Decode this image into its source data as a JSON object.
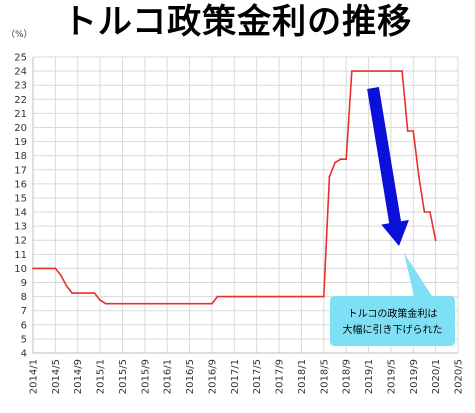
{
  "chart_data": {
    "type": "line",
    "title": "トルコ政策金利の推移",
    "ylabel": "（%）",
    "xlabel": "",
    "ylim": [
      4,
      25
    ],
    "yticks": [
      4,
      5,
      6,
      7,
      8,
      9,
      10,
      11,
      12,
      13,
      14,
      15,
      16,
      17,
      18,
      19,
      20,
      21,
      22,
      23,
      24,
      25
    ],
    "xticks": [
      "2014/1",
      "2014/5",
      "2014/9",
      "2015/1",
      "2015/5",
      "2015/9",
      "2016/1",
      "2016/5",
      "2016/9",
      "2017/1",
      "2017/5",
      "2017/9",
      "2018/1",
      "2018/5",
      "2018/9",
      "2019/1",
      "2019/5",
      "2019/9",
      "2020/1",
      "2020/5"
    ],
    "grid": true,
    "series": [
      {
        "color": "#e8302a",
        "points": [
          [
            "2014/1",
            10
          ],
          [
            "2014/5",
            10
          ],
          [
            "2014/6",
            9.5
          ],
          [
            "2014/7",
            8.75
          ],
          [
            "2014/8",
            8.25
          ],
          [
            "2014/12",
            8.25
          ],
          [
            "2015/1",
            7.75
          ],
          [
            "2015/2",
            7.5
          ],
          [
            "2016/9",
            7.5
          ],
          [
            "2016/10",
            8
          ],
          [
            "2018/5",
            8
          ],
          [
            "2018/6",
            16.5
          ],
          [
            "2018/7",
            17.5
          ],
          [
            "2018/8",
            17.75
          ],
          [
            "2018/9",
            17.75
          ],
          [
            "2018/10",
            24
          ],
          [
            "2019/7",
            24
          ],
          [
            "2019/8",
            19.75
          ],
          [
            "2019/9",
            19.75
          ],
          [
            "2019/10",
            16.5
          ],
          [
            "2019/11",
            14
          ],
          [
            "2019/12",
            14
          ],
          [
            "2020/1",
            12
          ]
        ]
      }
    ],
    "annotation": {
      "lines": [
        "トルコの政策金利は",
        "大幅に引き下げられた"
      ],
      "arrow_color": "#0a10d8",
      "box_color": "#7fdff4"
    }
  }
}
